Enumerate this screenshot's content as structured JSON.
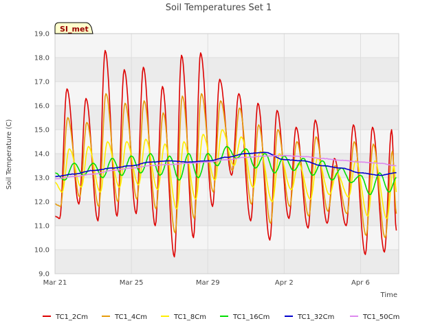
{
  "chart_data": {
    "type": "line",
    "title": "Soil Temperatures Set 1",
    "xlabel": "Time",
    "ylabel": "Soil Temperature (C)",
    "badge": "SI_met",
    "ylim": [
      9.0,
      19.0
    ],
    "yticks": [
      "9.0",
      "10.0",
      "11.0",
      "12.0",
      "13.0",
      "14.0",
      "15.0",
      "16.0",
      "17.0",
      "18.0",
      "19.0"
    ],
    "xlim": [
      "2024-03-21",
      "2024-04-08"
    ],
    "xticks": [
      {
        "date": "2024-03-21",
        "label": "Mar 21"
      },
      {
        "date": "2024-03-25",
        "label": "Mar 25"
      },
      {
        "date": "2024-03-29",
        "label": "Mar 29"
      },
      {
        "date": "2024-04-02",
        "label": "Apr 2"
      },
      {
        "date": "2024-04-06",
        "label": "Apr 6"
      }
    ],
    "grid": true,
    "band_colors": [
      "#ebebeb",
      "#f5f5f5"
    ],
    "legend_position": "bottom",
    "series": [
      {
        "name": "TC1_2Cm",
        "color": "#dd0000",
        "x": [
          "2024-03-21 00:00",
          "2024-03-21 06:00",
          "2024-03-21 15:00",
          "2024-03-22 06:00",
          "2024-03-22 15:00",
          "2024-03-23 06:00",
          "2024-03-23 15:00",
          "2024-03-24 06:00",
          "2024-03-24 15:00",
          "2024-03-25 06:00",
          "2024-03-25 15:00",
          "2024-03-26 06:00",
          "2024-03-26 15:00",
          "2024-03-27 06:00",
          "2024-03-27 15:00",
          "2024-03-28 06:00",
          "2024-03-28 15:00",
          "2024-03-29 06:00",
          "2024-03-29 15:00",
          "2024-03-30 06:00",
          "2024-03-30 15:00",
          "2024-03-31 06:00",
          "2024-03-31 15:00",
          "2024-04-01 06:00",
          "2024-04-01 15:00",
          "2024-04-02 06:00",
          "2024-04-02 15:00",
          "2024-04-03 06:00",
          "2024-04-03 15:00",
          "2024-04-04 06:00",
          "2024-04-04 15:00",
          "2024-04-05 06:00",
          "2024-04-05 15:00",
          "2024-04-06 06:00",
          "2024-04-06 15:00",
          "2024-04-07 06:00",
          "2024-04-07 15:00",
          "2024-04-07 21:00"
        ],
        "values": [
          11.4,
          11.3,
          16.7,
          11.9,
          16.3,
          11.2,
          18.3,
          11.4,
          17.5,
          11.5,
          17.6,
          11.0,
          16.8,
          9.7,
          18.1,
          10.5,
          18.2,
          11.8,
          17.1,
          13.1,
          16.5,
          11.2,
          16.1,
          10.4,
          15.8,
          11.3,
          15.1,
          10.9,
          15.4,
          11.1,
          13.8,
          11.0,
          15.2,
          9.8,
          15.1,
          9.9,
          15.0,
          10.8
        ]
      },
      {
        "name": "TC1_4Cm",
        "color": "#e69b0a",
        "x": [
          "2024-03-21 00:00",
          "2024-03-21 07:00",
          "2024-03-21 16:00",
          "2024-03-22 07:00",
          "2024-03-22 16:00",
          "2024-03-23 07:00",
          "2024-03-23 16:00",
          "2024-03-24 07:00",
          "2024-03-24 16:00",
          "2024-03-25 07:00",
          "2024-03-25 16:00",
          "2024-03-26 07:00",
          "2024-03-26 16:00",
          "2024-03-27 07:00",
          "2024-03-27 16:00",
          "2024-03-28 07:00",
          "2024-03-28 16:00",
          "2024-03-29 07:00",
          "2024-03-29 16:00",
          "2024-03-30 07:00",
          "2024-03-30 16:00",
          "2024-03-31 07:00",
          "2024-03-31 16:00",
          "2024-04-01 07:00",
          "2024-04-01 16:00",
          "2024-04-02 07:00",
          "2024-04-02 16:00",
          "2024-04-03 07:00",
          "2024-04-03 16:00",
          "2024-04-04 07:00",
          "2024-04-04 16:00",
          "2024-04-05 07:00",
          "2024-04-05 16:00",
          "2024-04-06 07:00",
          "2024-04-06 16:00",
          "2024-04-07 07:00",
          "2024-04-07 16:00",
          "2024-04-07 21:00"
        ],
        "values": [
          11.9,
          11.8,
          15.5,
          12.2,
          15.3,
          11.8,
          16.5,
          12.0,
          16.1,
          12.1,
          16.2,
          11.7,
          15.7,
          10.7,
          16.4,
          11.3,
          16.5,
          12.4,
          16.2,
          13.3,
          15.9,
          11.9,
          15.2,
          11.1,
          15.0,
          11.8,
          14.5,
          11.4,
          14.7,
          11.6,
          13.5,
          11.5,
          14.5,
          10.6,
          14.4,
          10.5,
          14.1,
          11.5
        ]
      },
      {
        "name": "TC1_8Cm",
        "color": "#ffee00",
        "x": [
          "2024-03-21 00:00",
          "2024-03-21 09:00",
          "2024-03-21 18:00",
          "2024-03-22 09:00",
          "2024-03-22 18:00",
          "2024-03-23 09:00",
          "2024-03-23 18:00",
          "2024-03-24 09:00",
          "2024-03-24 18:00",
          "2024-03-25 09:00",
          "2024-03-25 18:00",
          "2024-03-26 09:00",
          "2024-03-26 18:00",
          "2024-03-27 09:00",
          "2024-03-27 18:00",
          "2024-03-28 09:00",
          "2024-03-28 18:00",
          "2024-03-29 09:00",
          "2024-03-29 18:00",
          "2024-03-30 09:00",
          "2024-03-30 18:00",
          "2024-03-31 09:00",
          "2024-03-31 18:00",
          "2024-04-01 09:00",
          "2024-04-01 18:00",
          "2024-04-02 09:00",
          "2024-04-02 18:00",
          "2024-04-03 09:00",
          "2024-04-03 18:00",
          "2024-04-04 09:00",
          "2024-04-04 18:00",
          "2024-04-05 09:00",
          "2024-04-05 18:00",
          "2024-04-06 09:00",
          "2024-04-06 18:00",
          "2024-04-07 09:00",
          "2024-04-07 18:00",
          "2024-04-07 21:00"
        ],
        "values": [
          12.8,
          12.4,
          14.2,
          12.6,
          14.3,
          12.4,
          14.5,
          12.6,
          14.5,
          12.7,
          14.6,
          12.5,
          14.4,
          11.7,
          14.5,
          12.1,
          14.8,
          12.9,
          15.0,
          13.5,
          14.7,
          12.6,
          14.1,
          12.0,
          14.0,
          12.5,
          13.6,
          12.1,
          13.8,
          12.3,
          13.2,
          12.2,
          13.7,
          11.4,
          13.7,
          11.3,
          13.5,
          12.4
        ]
      },
      {
        "name": "TC1_16Cm",
        "color": "#00dd00",
        "x": [
          "2024-03-21 00:00",
          "2024-03-21 12:00",
          "2024-03-22 00:00",
          "2024-03-22 12:00",
          "2024-03-23 00:00",
          "2024-03-23 12:00",
          "2024-03-24 00:00",
          "2024-03-24 12:00",
          "2024-03-25 00:00",
          "2024-03-25 12:00",
          "2024-03-26 00:00",
          "2024-03-26 12:00",
          "2024-03-27 00:00",
          "2024-03-27 12:00",
          "2024-03-28 00:00",
          "2024-03-28 12:00",
          "2024-03-29 00:00",
          "2024-03-29 12:00",
          "2024-03-30 00:00",
          "2024-03-30 12:00",
          "2024-03-31 00:00",
          "2024-03-31 12:00",
          "2024-04-01 00:00",
          "2024-04-01 12:00",
          "2024-04-02 00:00",
          "2024-04-02 12:00",
          "2024-04-03 00:00",
          "2024-04-03 12:00",
          "2024-04-04 00:00",
          "2024-04-04 12:00",
          "2024-04-05 00:00",
          "2024-04-05 12:00",
          "2024-04-06 00:00",
          "2024-04-06 12:00",
          "2024-04-07 00:00",
          "2024-04-07 12:00",
          "2024-04-07 21:00"
        ],
        "values": [
          13.2,
          12.9,
          13.6,
          13.1,
          13.6,
          13.0,
          13.8,
          13.1,
          13.9,
          13.2,
          14.0,
          13.1,
          13.9,
          12.9,
          14.0,
          13.0,
          14.0,
          13.5,
          14.3,
          13.8,
          14.2,
          13.4,
          14.0,
          13.2,
          13.9,
          13.3,
          13.8,
          13.1,
          13.7,
          12.9,
          13.4,
          12.8,
          13.1,
          12.3,
          13.2,
          12.4,
          13.0
        ]
      },
      {
        "name": "TC1_32Cm",
        "color": "#0000cc",
        "x": [
          "2024-03-21 00:00",
          "2024-03-22 00:00",
          "2024-03-23 00:00",
          "2024-03-24 00:00",
          "2024-03-25 00:00",
          "2024-03-26 00:00",
          "2024-03-27 00:00",
          "2024-03-28 00:00",
          "2024-03-29 00:00",
          "2024-03-30 00:00",
          "2024-03-31 00:00",
          "2024-04-01 00:00",
          "2024-04-02 00:00",
          "2024-04-03 00:00",
          "2024-04-04 00:00",
          "2024-04-05 00:00",
          "2024-04-06 00:00",
          "2024-04-07 00:00",
          "2024-04-07 21:00"
        ],
        "values": [
          13.05,
          13.15,
          13.3,
          13.4,
          13.5,
          13.65,
          13.7,
          13.65,
          13.7,
          13.85,
          14.0,
          14.05,
          13.75,
          13.7,
          13.5,
          13.4,
          13.2,
          13.1,
          13.2
        ]
      },
      {
        "name": "TC1_50Cm",
        "color": "#dd88ee",
        "x": [
          "2024-03-21 00:00",
          "2024-03-22 00:00",
          "2024-03-23 00:00",
          "2024-03-24 00:00",
          "2024-03-25 00:00",
          "2024-03-26 00:00",
          "2024-03-27 00:00",
          "2024-03-28 00:00",
          "2024-03-29 00:00",
          "2024-03-30 00:00",
          "2024-03-31 00:00",
          "2024-04-01 00:00",
          "2024-04-02 00:00",
          "2024-04-03 00:00",
          "2024-04-04 00:00",
          "2024-04-05 00:00",
          "2024-04-06 00:00",
          "2024-04-07 00:00",
          "2024-04-07 21:00"
        ],
        "values": [
          12.95,
          13.05,
          13.15,
          13.3,
          13.4,
          13.5,
          13.55,
          13.6,
          13.65,
          13.75,
          13.85,
          13.9,
          13.92,
          13.88,
          13.8,
          13.72,
          13.65,
          13.6,
          13.5
        ]
      }
    ]
  }
}
